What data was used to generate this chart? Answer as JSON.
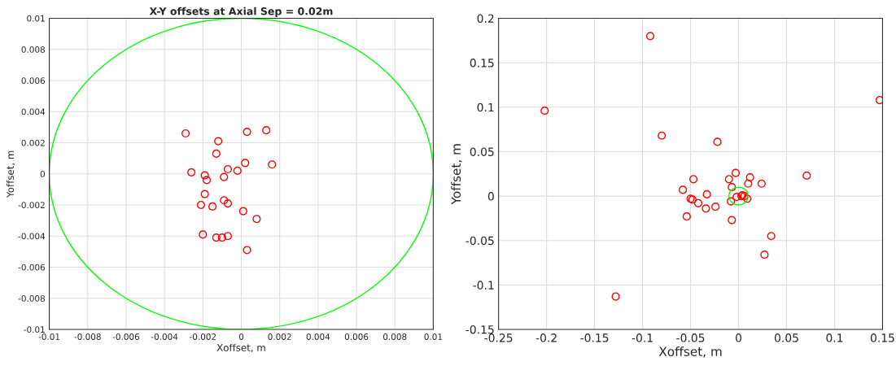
{
  "chart_data": [
    {
      "type": "scatter",
      "title": "X-Y offsets at Axial Sep = 0.02m",
      "xlabel": "Xoffset, m",
      "ylabel": "Yoffset, m",
      "xlim": [
        -0.01,
        0.01
      ],
      "ylim": [
        -0.01,
        0.01
      ],
      "xticks": [
        -0.01,
        -0.008,
        -0.006,
        -0.004,
        -0.002,
        0,
        0.002,
        0.004,
        0.006,
        0.008,
        0.01
      ],
      "yticks": [
        -0.01,
        -0.008,
        -0.006,
        -0.004,
        -0.002,
        0,
        0.002,
        0.004,
        0.006,
        0.008,
        0.01
      ],
      "grid": true,
      "series": [
        {
          "type": "scatter",
          "color": "#ff0000",
          "marker": "circle",
          "x": [
            -0.0029,
            0.0003,
            0.0013,
            -0.0012,
            -0.0013,
            0.0002,
            0.0016,
            -0.0026,
            -0.0019,
            -0.0018,
            -0.0007,
            -0.0002,
            -0.0009,
            -0.0019,
            -0.0021,
            -0.0015,
            -0.0009,
            -0.0007,
            0.0001,
            0.0008,
            -0.002,
            -0.0013,
            -0.001,
            -0.0007,
            0.0003
          ],
          "values": [
            0.0026,
            0.0027,
            0.0028,
            0.0021,
            0.0013,
            0.0007,
            0.0006,
            0.0001,
            -0.0001,
            -0.0004,
            0.0003,
            0.0002,
            -0.0002,
            -0.0013,
            -0.002,
            -0.0021,
            -0.0017,
            -0.0019,
            -0.0024,
            -0.0029,
            -0.0039,
            -0.0041,
            -0.0041,
            -0.004,
            -0.0049
          ]
        }
      ]
    },
    {
      "type": "scatter",
      "xlabel": "Xoffset, m",
      "ylabel": "Yoffset, m",
      "xlim": [
        -0.25,
        0.15
      ],
      "ylim": [
        -0.15,
        0.2
      ],
      "xticks": [
        -0.25,
        -0.2,
        -0.15,
        -0.1,
        -0.05,
        0,
        0.05,
        0.1,
        0.15
      ],
      "yticks": [
        -0.15,
        -0.1,
        -0.05,
        0,
        0.05,
        0.1,
        0.15,
        0.2
      ],
      "grid": true,
      "series": [
        {
          "type": "scatter",
          "color": "#ff0000",
          "marker": "circle",
          "x": [
            -0.092,
            -0.202,
            0.147,
            -0.08,
            -0.022,
            -0.003,
            -0.01,
            -0.047,
            0.012,
            0.01,
            0.024,
            0.071,
            -0.058,
            -0.033,
            -0.007,
            -0.05,
            -0.048,
            -0.042,
            -0.034,
            -0.024,
            -0.008,
            -0.002,
            0.004,
            0.006,
            0.009,
            0.003,
            -0.054,
            -0.007,
            0.034,
            0.027,
            -0.128
          ],
          "values": [
            0.18,
            0.096,
            0.108,
            0.068,
            0.061,
            0.026,
            0.019,
            0.019,
            0.021,
            0.014,
            0.014,
            0.023,
            0.007,
            0.002,
            0.01,
            -0.003,
            -0.004,
            -0.008,
            -0.014,
            -0.012,
            -0.006,
            -0.001,
            0.001,
            0,
            -0.003,
            0,
            -0.023,
            -0.027,
            -0.045,
            -0.066,
            -0.113
          ]
        }
      ]
    }
  ]
}
